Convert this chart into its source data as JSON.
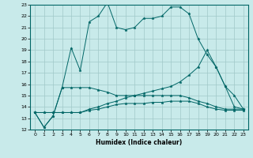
{
  "xlabel": "Humidex (Indice chaleur)",
  "bg_color": "#c8eaea",
  "grid_color": "#a0c8c8",
  "line_color": "#006666",
  "xlim": [
    -0.5,
    23.5
  ],
  "ylim": [
    12,
    23
  ],
  "xticks": [
    0,
    1,
    2,
    3,
    4,
    5,
    6,
    7,
    8,
    9,
    10,
    11,
    12,
    13,
    14,
    15,
    16,
    17,
    18,
    19,
    20,
    21,
    22,
    23
  ],
  "yticks": [
    12,
    13,
    14,
    15,
    16,
    17,
    18,
    19,
    20,
    21,
    22,
    23
  ],
  "series": [
    [
      13.5,
      12.2,
      13.2,
      15.7,
      19.2,
      17.2,
      21.5,
      22.0,
      23.2,
      21.0,
      20.8,
      21.0,
      21.8,
      21.8,
      22.0,
      22.8,
      22.8,
      22.2,
      20.0,
      18.6,
      17.5,
      15.8,
      14.0,
      13.8
    ],
    [
      13.5,
      12.2,
      13.2,
      15.7,
      15.7,
      15.7,
      15.7,
      15.5,
      15.3,
      15.0,
      15.0,
      15.0,
      15.0,
      15.0,
      15.0,
      15.0,
      15.0,
      14.8,
      14.5,
      14.3,
      14.0,
      13.8,
      13.8,
      13.8
    ],
    [
      13.5,
      13.5,
      13.5,
      13.5,
      13.5,
      13.5,
      13.8,
      14.0,
      14.3,
      14.5,
      14.8,
      15.0,
      15.2,
      15.4,
      15.6,
      15.8,
      16.2,
      16.8,
      17.5,
      19.0,
      17.5,
      15.8,
      15.0,
      13.8
    ],
    [
      13.5,
      13.5,
      13.5,
      13.5,
      13.5,
      13.5,
      13.7,
      13.8,
      14.0,
      14.2,
      14.3,
      14.3,
      14.3,
      14.4,
      14.4,
      14.5,
      14.5,
      14.5,
      14.3,
      14.0,
      13.8,
      13.7,
      13.7,
      13.7
    ]
  ]
}
